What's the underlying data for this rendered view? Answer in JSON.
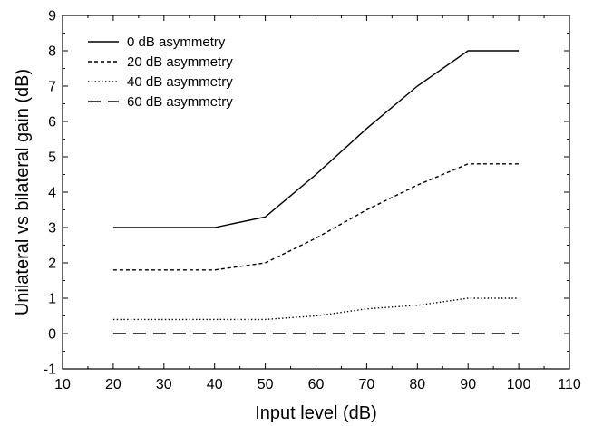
{
  "chart_data": {
    "type": "line",
    "title": "",
    "xlabel": "Input level (dB)",
    "ylabel": "Unilateral vs bilateral gain (dB)",
    "xlim": [
      10,
      110
    ],
    "ylim": [
      -1,
      9
    ],
    "xticks": [
      10,
      20,
      30,
      40,
      50,
      60,
      70,
      80,
      90,
      100,
      110
    ],
    "yticks": [
      -1,
      0,
      1,
      2,
      3,
      4,
      5,
      6,
      7,
      8,
      9
    ],
    "grid": false,
    "legend_position": "top-left",
    "series": [
      {
        "name": "0 dB asymmetry",
        "dash": "solid",
        "x": [
          20,
          40,
          50,
          60,
          70,
          80,
          90,
          100
        ],
        "y": [
          3.0,
          3.0,
          3.3,
          4.5,
          5.8,
          7.0,
          8.0,
          8.0
        ]
      },
      {
        "name": "20 dB asymmetry",
        "dash": "dashed",
        "x": [
          20,
          40,
          50,
          60,
          70,
          80,
          90,
          100
        ],
        "y": [
          1.8,
          1.8,
          2.0,
          2.7,
          3.5,
          4.2,
          4.8,
          4.8
        ]
      },
      {
        "name": "40 dB asymmetry",
        "dash": "dotted",
        "x": [
          20,
          40,
          50,
          60,
          70,
          80,
          90,
          100
        ],
        "y": [
          0.4,
          0.4,
          0.4,
          0.5,
          0.7,
          0.8,
          1.0,
          1.0
        ]
      },
      {
        "name": "60 dB asymmetry",
        "dash": "longdash",
        "x": [
          20,
          40,
          50,
          60,
          70,
          80,
          90,
          100
        ],
        "y": [
          0,
          0,
          0,
          0,
          0,
          0,
          0,
          0
        ]
      }
    ]
  }
}
